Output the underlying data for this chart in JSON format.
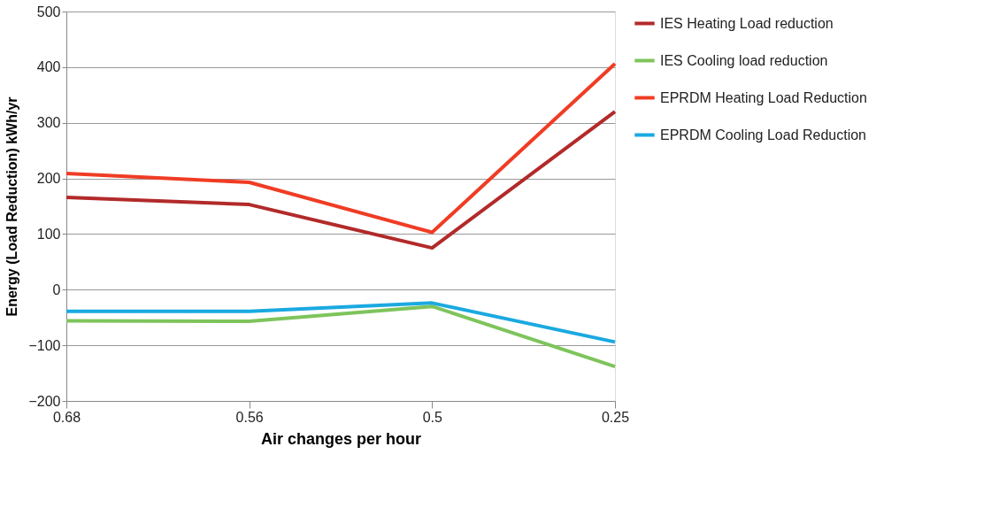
{
  "chart_data": {
    "type": "line",
    "xlabel": "Air changes per hour",
    "ylabel": "Energy (Load Reduction) kWh/yr",
    "categories": [
      "0.68",
      "0.56",
      "0.5",
      "0.25"
    ],
    "series": [
      {
        "name": "IES Heating Load reduction",
        "color": "#b22a2a",
        "values": [
          166,
          153,
          75,
          320
        ]
      },
      {
        "name": "IES Cooling load reduction",
        "color": "#7ec45c",
        "values": [
          -56,
          -57,
          -30,
          -138
        ]
      },
      {
        "name": "EPRDM Heating Load Reduction",
        "color": "#f03c24",
        "values": [
          209,
          193,
          103,
          406
        ]
      },
      {
        "name": "EPRDM Cooling Load Reduction",
        "color": "#1aa9e0",
        "values": [
          -39,
          -39,
          -24,
          -94
        ]
      }
    ],
    "ylim": [
      -200,
      500
    ],
    "yticks": [
      -200,
      -100,
      0,
      100,
      200,
      300,
      400,
      500
    ],
    "grid": "y",
    "legend": "right",
    "marker": "none",
    "line_style": "solid"
  }
}
